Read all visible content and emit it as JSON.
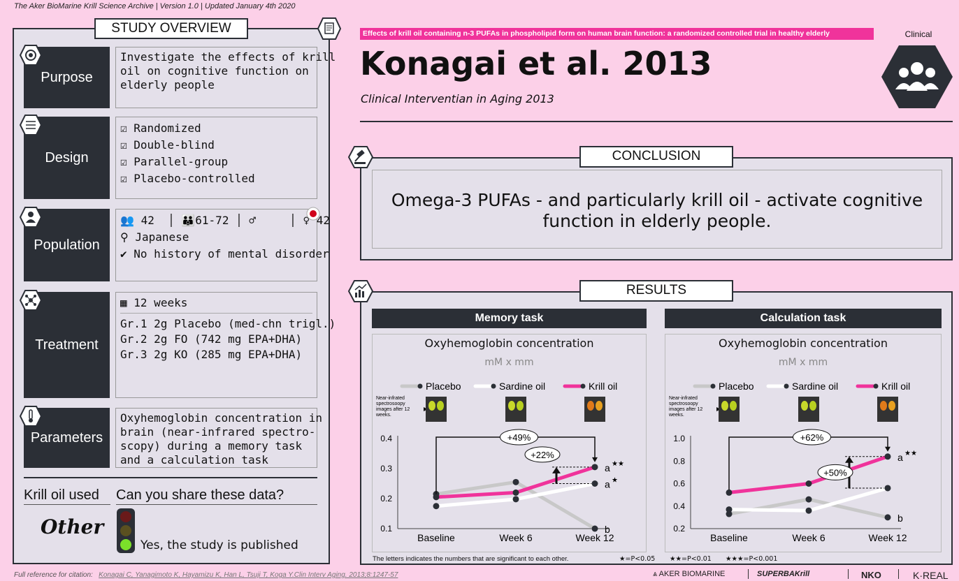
{
  "header": {
    "text": "The Aker BioMarine Krill Science Archive | Version 1.0 | Updated January 4th 2020"
  },
  "overview": {
    "title": "STUDY OVERVIEW",
    "purpose": {
      "label": "Purpose",
      "lines": [
        "Investigate the effects of krill",
        "oil on cognitive function on",
        "elderly people"
      ]
    },
    "design": {
      "label": "Design",
      "items": [
        "Randomized",
        "Double-blind",
        "Parallel-group",
        "Placebo-controlled"
      ]
    },
    "population": {
      "label": "Population",
      "total": "42",
      "age": "61-72",
      "male": "",
      "female": "42",
      "location": "Japanese",
      "condition": "No history of mental disorder"
    },
    "treatment": {
      "label": "Treatment",
      "duration": "12 weeks",
      "groups": [
        "Gr.1 2g Placebo (med-chn trigl.)",
        "Gr.2 2g FO (742 mg EPA+DHA)",
        "Gr.3 2g KO (285 mg EPA+DHA)"
      ]
    },
    "parameters": {
      "label": "Parameters",
      "lines": [
        "Oxyhemoglobin concentration in",
        "brain (near-infrared spectro-",
        "scopy) during a memory task",
        "and a calculation task"
      ]
    },
    "krill_used": {
      "label": "Krill oil used",
      "value": "Other"
    },
    "share": {
      "label": "Can you share these data?",
      "value": "Yes, the study is published"
    }
  },
  "study": {
    "banner": "Effects of krill oil containing n-3 PUFAs in phospholipid form on human brain function: a randomized controlled trial in healthy elderly",
    "category": "Clinical",
    "title": "Konagai et al. 2013",
    "journal": "Clinical Interventian in Aging 2013"
  },
  "conclusion": {
    "title": "CONCLUSION",
    "lines": [
      "Omega-3 PUFAs - and particularly krill oil - activate cognitive",
      "function in elderly people."
    ]
  },
  "results": {
    "title": "RESULTS",
    "note": "The letters indicates the numbers that are significant to each other.",
    "sig": [
      "★=P<0.05",
      "★★=P<0.01",
      "★★★=P<0.001"
    ],
    "nirs_caption": [
      "Near-infrated",
      "spectrosoopy",
      "images after 12",
      "weeks."
    ]
  },
  "chart_data": [
    {
      "type": "line",
      "panel": "Memory task",
      "title": "Oxyhemoglobin concentration",
      "ylabel": "mM x mm",
      "categories": [
        "Baseline",
        "Week 6",
        "Week 12"
      ],
      "ylim": [
        0.1,
        0.4
      ],
      "yticks": [
        "0.1",
        "0.2",
        "0.3",
        "0.4"
      ],
      "series": [
        {
          "name": "Placebo",
          "color": "#c8c8c8",
          "values": [
            0.215,
            0.255,
            0.1
          ],
          "label": "b",
          "stars": ""
        },
        {
          "name": "Sardine oil",
          "color": "#ffffff",
          "values": [
            0.175,
            0.198,
            0.25
          ],
          "label": "a",
          "stars": "★"
        },
        {
          "name": "Krill oil",
          "color": "#f0339b",
          "values": [
            0.205,
            0.22,
            0.305
          ],
          "label": "a",
          "stars": "★★"
        }
      ],
      "annotations": [
        "+49%",
        "+22%"
      ]
    },
    {
      "type": "line",
      "panel": "Calculation task",
      "title": "Oxyhemoglobin concentration",
      "ylabel": "mM x mm",
      "categories": [
        "Baseline",
        "Week 6",
        "Week 12"
      ],
      "ylim": [
        0.2,
        1.0
      ],
      "yticks": [
        "0.2",
        "0.4",
        "0.6",
        "0.8",
        "1.0"
      ],
      "series": [
        {
          "name": "Placebo",
          "color": "#c8c8c8",
          "values": [
            0.33,
            0.46,
            0.3
          ],
          "label": "b",
          "stars": ""
        },
        {
          "name": "Sardine oil",
          "color": "#ffffff",
          "values": [
            0.37,
            0.36,
            0.56
          ],
          "label": "",
          "stars": ""
        },
        {
          "name": "Krill oil",
          "color": "#f0339b",
          "values": [
            0.52,
            0.6,
            0.84
          ],
          "label": "a",
          "stars": "★★"
        }
      ],
      "annotations": [
        "+62%",
        "+50%"
      ]
    }
  ],
  "footer": {
    "label": "Full reference for citation:",
    "citation": "Konagai C, Yanagimoto K, Hayamizu K, Han L, Tsuji T, Koga Y.Clin Interv Aging. 2013;8:1247-57"
  },
  "logos": [
    "AKER BIOMARINE",
    "SUPERBAKrill",
    "NKO",
    "K·REAL"
  ]
}
